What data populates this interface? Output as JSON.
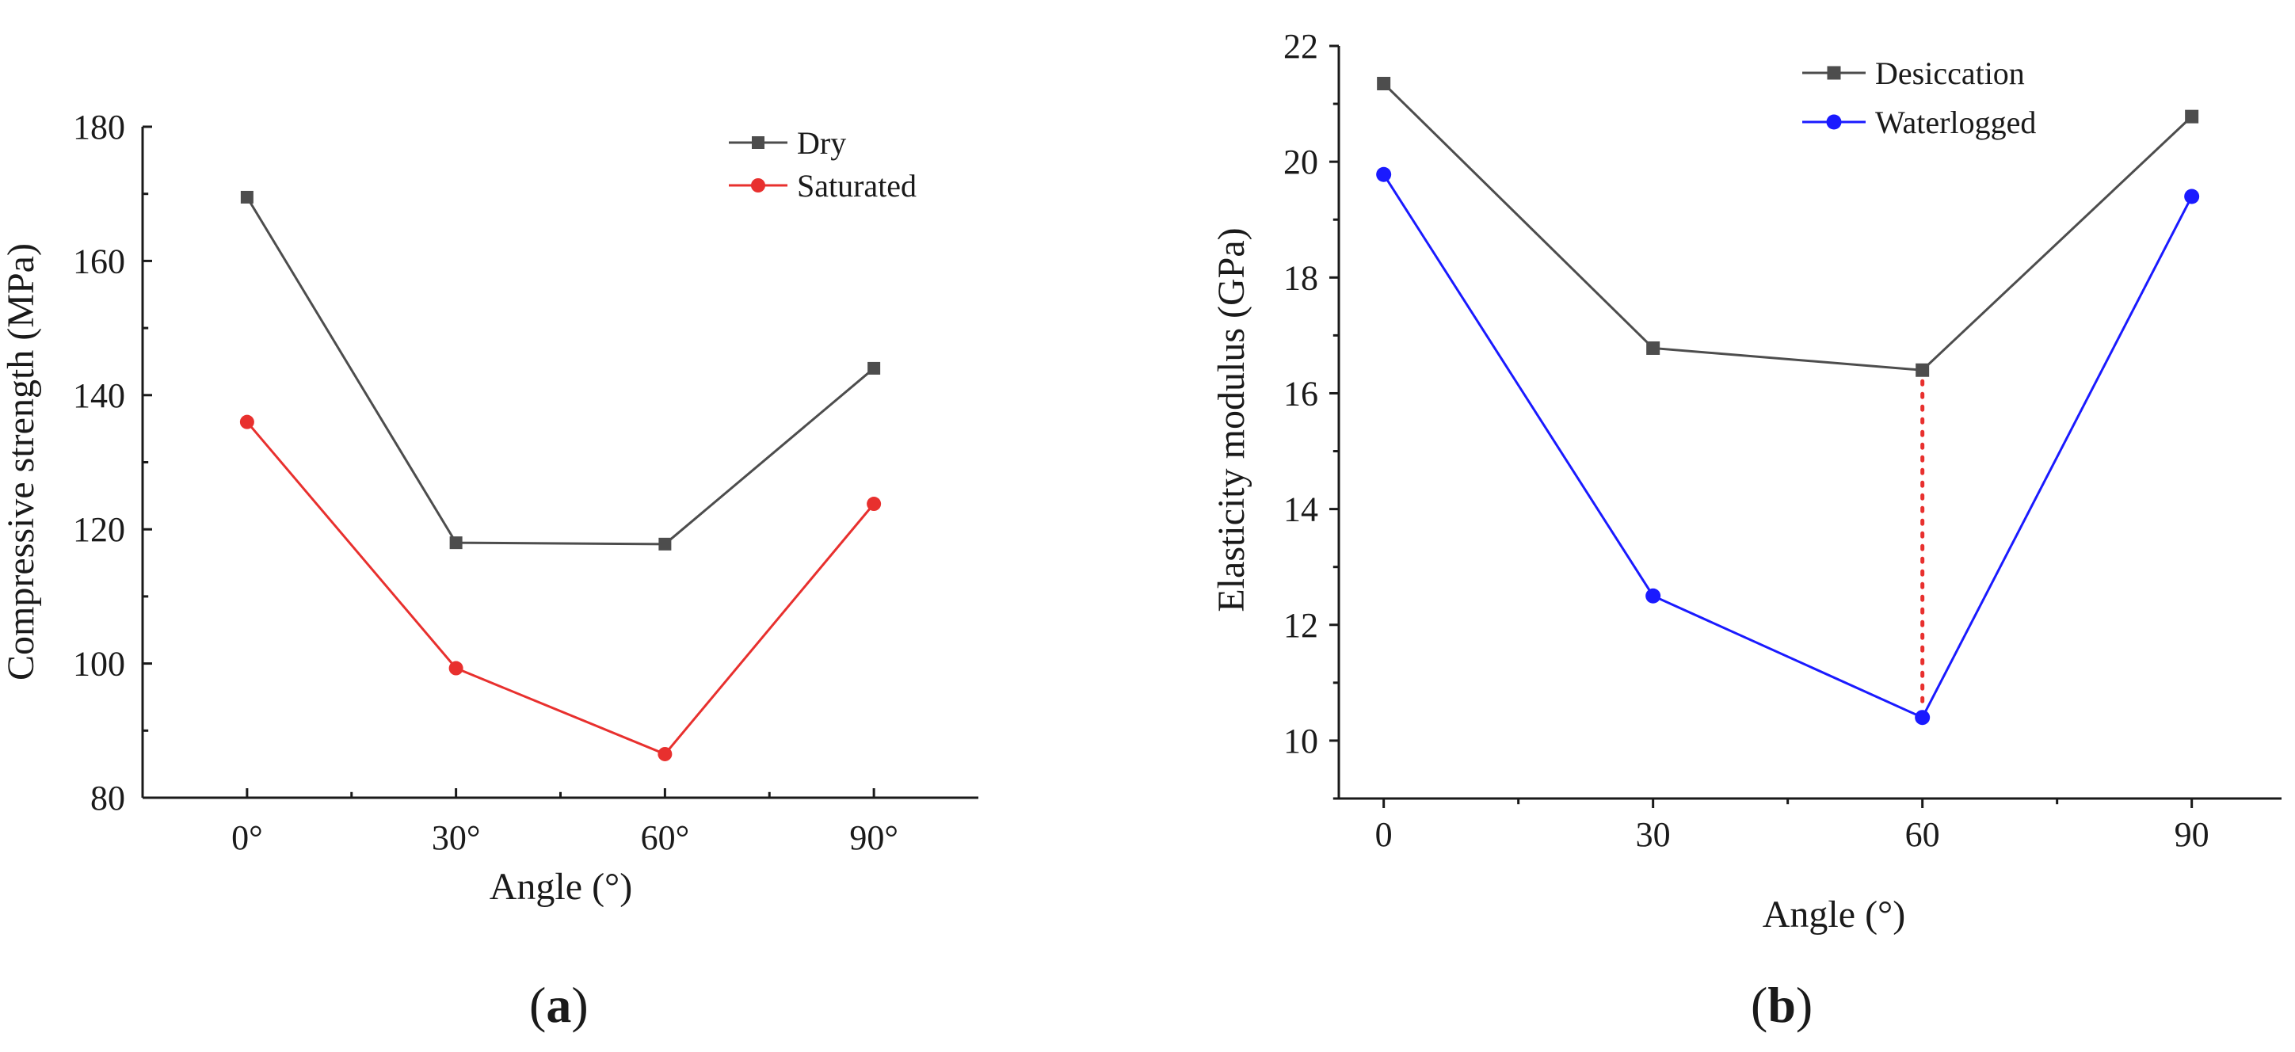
{
  "chart_data": [
    {
      "type": "line",
      "panel_label": "a",
      "xlabel": "Angle (°)",
      "ylabel": "Compressive strength (MPa)",
      "categories": [
        "0°",
        "30°",
        "60°",
        "90°"
      ],
      "x": [
        0,
        30,
        60,
        90
      ],
      "xlim": [
        -15,
        105
      ],
      "ylim": [
        80,
        180
      ],
      "yticks": [
        80,
        100,
        120,
        140,
        160,
        180
      ],
      "legend_position": "top-right",
      "series": [
        {
          "name": "Dry",
          "color": "#4d4d4d",
          "marker": "square",
          "values": [
            169.5,
            118,
            117.8,
            144
          ]
        },
        {
          "name": "Saturated",
          "color": "#e8302e",
          "marker": "circle",
          "values": [
            136,
            99.3,
            86.5,
            123.8
          ]
        }
      ]
    },
    {
      "type": "line",
      "panel_label": "b",
      "xlabel": "Angle (°)",
      "ylabel": "Elasticity modulus (GPa)",
      "categories": [
        "0",
        "30",
        "60",
        "90"
      ],
      "x": [
        0,
        30,
        60,
        90
      ],
      "xlim": [
        -5,
        100
      ],
      "ylim": [
        9,
        22
      ],
      "yticks": [
        10,
        12,
        14,
        16,
        18,
        20,
        22
      ],
      "legend_position": "top-right",
      "series": [
        {
          "name": "Desiccation",
          "color": "#4d4d4d",
          "marker": "square",
          "values": [
            21.35,
            16.78,
            16.4,
            20.78
          ]
        },
        {
          "name": "Waterlogged",
          "color": "#1a1aff",
          "marker": "circle",
          "values": [
            19.78,
            12.5,
            10.4,
            19.4
          ]
        }
      ],
      "annotation": {
        "type": "dotted-vertical",
        "color": "#e8302e",
        "x": 60,
        "from": 16.4,
        "to": 10.4
      }
    }
  ]
}
